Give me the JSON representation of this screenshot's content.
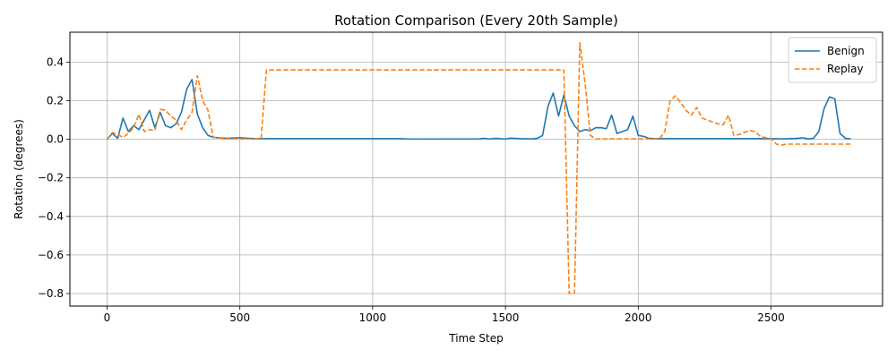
{
  "chart_data": {
    "type": "line",
    "title": "Rotation Comparison (Every 20th Sample)",
    "xlabel": "Time Step",
    "ylabel": "Rotation (degrees)",
    "xlim": [
      -140,
      2920
    ],
    "ylim": [
      -0.865,
      0.555
    ],
    "xticks": [
      0,
      500,
      1000,
      1500,
      2000,
      2500
    ],
    "yticks": [
      -0.8,
      -0.6,
      -0.4,
      -0.2,
      0.0,
      0.2,
      0.4
    ],
    "grid": true,
    "legend_position": "top-right",
    "series": [
      {
        "name": "Benign",
        "color": "#1f77b4",
        "style": "solid",
        "points": [
          [
            0,
            0
          ],
          [
            20,
            0.03
          ],
          [
            40,
            0.005
          ],
          [
            60,
            0.11
          ],
          [
            80,
            0.04
          ],
          [
            100,
            0.07
          ],
          [
            120,
            0.05
          ],
          [
            140,
            0.1
          ],
          [
            160,
            0.15
          ],
          [
            180,
            0.06
          ],
          [
            200,
            0.14
          ],
          [
            220,
            0.07
          ],
          [
            240,
            0.06
          ],
          [
            260,
            0.08
          ],
          [
            280,
            0.14
          ],
          [
            300,
            0.26
          ],
          [
            320,
            0.31
          ],
          [
            340,
            0.13
          ],
          [
            360,
            0.06
          ],
          [
            380,
            0.02
          ],
          [
            400,
            0.01
          ],
          [
            450,
            0.005
          ],
          [
            500,
            0.008
          ],
          [
            550,
            0.004
          ],
          [
            600,
            0.003
          ],
          [
            1100,
            0.003
          ],
          [
            1150,
            0.001
          ],
          [
            1400,
            0.002
          ],
          [
            1420,
            0.005
          ],
          [
            1440,
            0.001
          ],
          [
            1460,
            0.005
          ],
          [
            1480,
            0.003
          ],
          [
            1500,
            0.001
          ],
          [
            1520,
            0.006
          ],
          [
            1560,
            0.003
          ],
          [
            1600,
            0.002
          ],
          [
            1620,
            0.005
          ],
          [
            1640,
            0.02
          ],
          [
            1660,
            0.17
          ],
          [
            1680,
            0.24
          ],
          [
            1700,
            0.12
          ],
          [
            1720,
            0.23
          ],
          [
            1740,
            0.12
          ],
          [
            1760,
            0.07
          ],
          [
            1780,
            0.04
          ],
          [
            1800,
            0.05
          ],
          [
            1820,
            0.045
          ],
          [
            1840,
            0.06
          ],
          [
            1860,
            0.06
          ],
          [
            1880,
            0.055
          ],
          [
            1900,
            0.125
          ],
          [
            1920,
            0.03
          ],
          [
            1940,
            0.04
          ],
          [
            1960,
            0.05
          ],
          [
            1980,
            0.12
          ],
          [
            2000,
            0.02
          ],
          [
            2020,
            0.015
          ],
          [
            2040,
            0.005
          ],
          [
            2060,
            0.004
          ],
          [
            2100,
            0.003
          ],
          [
            2500,
            0.003
          ],
          [
            2550,
            0.002
          ],
          [
            2600,
            0.005
          ],
          [
            2620,
            0.008
          ],
          [
            2640,
            0.002
          ],
          [
            2660,
            0.005
          ],
          [
            2680,
            0.04
          ],
          [
            2700,
            0.16
          ],
          [
            2720,
            0.22
          ],
          [
            2740,
            0.21
          ],
          [
            2760,
            0.03
          ],
          [
            2780,
            0.005
          ],
          [
            2800,
            0.002
          ]
        ]
      },
      {
        "name": "Replay",
        "color": "#ff7f0e",
        "style": "dashed",
        "points": [
          [
            0,
            0
          ],
          [
            20,
            0.035
          ],
          [
            40,
            0.025
          ],
          [
            60,
            0.01
          ],
          [
            80,
            0.03
          ],
          [
            100,
            0.06
          ],
          [
            120,
            0.13
          ],
          [
            140,
            0.04
          ],
          [
            160,
            0.05
          ],
          [
            180,
            0.045
          ],
          [
            200,
            0.155
          ],
          [
            220,
            0.15
          ],
          [
            240,
            0.12
          ],
          [
            260,
            0.1
          ],
          [
            280,
            0.05
          ],
          [
            300,
            0.1
          ],
          [
            320,
            0.14
          ],
          [
            340,
            0.33
          ],
          [
            360,
            0.2
          ],
          [
            380,
            0.15
          ],
          [
            400,
            0.01
          ],
          [
            450,
            0.003
          ],
          [
            500,
            0.002
          ],
          [
            580,
            0.002
          ],
          [
            600,
            0.36
          ],
          [
            1720,
            0.36
          ],
          [
            1740,
            -0.8
          ],
          [
            1760,
            -0.8
          ],
          [
            1780,
            0.5
          ],
          [
            1800,
            0.29
          ],
          [
            1820,
            0.02
          ],
          [
            1840,
            0.002
          ],
          [
            2080,
            0.002
          ],
          [
            2100,
            0.04
          ],
          [
            2120,
            0.2
          ],
          [
            2140,
            0.225
          ],
          [
            2160,
            0.19
          ],
          [
            2180,
            0.15
          ],
          [
            2200,
            0.125
          ],
          [
            2220,
            0.165
          ],
          [
            2240,
            0.11
          ],
          [
            2260,
            0.1
          ],
          [
            2280,
            0.09
          ],
          [
            2300,
            0.08
          ],
          [
            2320,
            0.075
          ],
          [
            2340,
            0.125
          ],
          [
            2360,
            0.02
          ],
          [
            2380,
            0.025
          ],
          [
            2400,
            0.035
          ],
          [
            2420,
            0.045
          ],
          [
            2440,
            0.04
          ],
          [
            2460,
            0.015
          ],
          [
            2480,
            0.008
          ],
          [
            2500,
            0.005
          ],
          [
            2520,
            -0.025
          ],
          [
            2540,
            -0.03
          ],
          [
            2560,
            -0.025
          ],
          [
            2800,
            -0.025
          ]
        ]
      }
    ]
  }
}
